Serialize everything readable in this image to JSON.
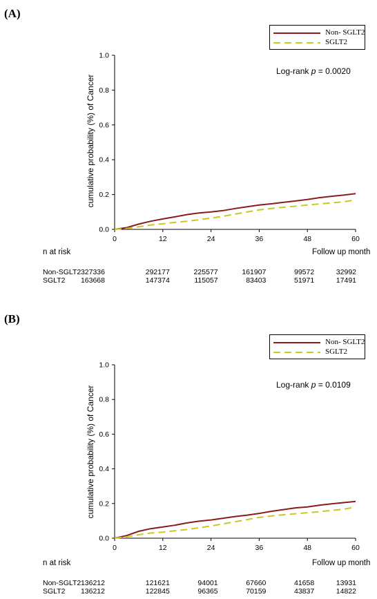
{
  "chart_data": [
    {
      "panel_label": "(A)",
      "type": "line",
      "ylabel": "cumulative probability (%) of Cancer",
      "xlabel": "Follow up month",
      "xticks": [
        0,
        12,
        24,
        36,
        48,
        60
      ],
      "yticks": [
        "0.0",
        "0.2",
        "0.4",
        "0.6",
        "0.8",
        "1.0"
      ],
      "xlim": [
        0,
        60
      ],
      "ylim": [
        0,
        1
      ],
      "annotation": {
        "prefix": "Log-rank ",
        "p": "p",
        "value": " = 0.0020"
      },
      "legend_position": "top-right",
      "series": [
        {
          "name": "Non- SGLT2",
          "color": "#8b1a1a",
          "dash": "solid",
          "x": [
            0,
            3,
            6,
            9,
            12,
            15,
            18,
            21,
            24,
            27,
            30,
            33,
            36,
            39,
            42,
            45,
            48,
            51,
            54,
            57,
            60
          ],
          "y": [
            0,
            0.01,
            0.03,
            0.047,
            0.06,
            0.072,
            0.085,
            0.094,
            0.1,
            0.108,
            0.12,
            0.13,
            0.14,
            0.147,
            0.155,
            0.163,
            0.172,
            0.182,
            0.19,
            0.197,
            0.205
          ]
        },
        {
          "name": "SGLT2",
          "color": "#c8c81e",
          "dash": "dashed",
          "x": [
            0,
            3,
            6,
            9,
            12,
            15,
            18,
            21,
            24,
            27,
            30,
            33,
            36,
            39,
            42,
            45,
            48,
            51,
            54,
            57,
            60
          ],
          "y": [
            0,
            0.005,
            0.015,
            0.025,
            0.032,
            0.04,
            0.047,
            0.055,
            0.065,
            0.075,
            0.088,
            0.1,
            0.112,
            0.12,
            0.127,
            0.133,
            0.14,
            0.146,
            0.152,
            0.158,
            0.17
          ]
        }
      ],
      "at_risk": {
        "title": "n at risk",
        "rows": [
          {
            "label": "Non-SGLT2",
            "values": [
              "327336",
              "292177",
              "225577",
              "161907",
              "99572",
              "32992"
            ]
          },
          {
            "label": "SGLT2",
            "values": [
              "163668",
              "147374",
              "115057",
              "83403",
              "51971",
              "17491"
            ]
          }
        ]
      }
    },
    {
      "panel_label": "(B)",
      "type": "line",
      "ylabel": "cumulative probability (%) of Cancer",
      "xlabel": "Follow up month",
      "xticks": [
        0,
        12,
        24,
        36,
        48,
        60
      ],
      "yticks": [
        "0.0",
        "0.2",
        "0.4",
        "0.6",
        "0.8",
        "1.0"
      ],
      "xlim": [
        0,
        60
      ],
      "ylim": [
        0,
        1
      ],
      "annotation": {
        "prefix": "Log-rank ",
        "p": "p",
        "value": " = 0.0109"
      },
      "legend_position": "top-right",
      "series": [
        {
          "name": "Non- SGLT2",
          "color": "#8b1a1a",
          "dash": "solid",
          "x": [
            0,
            3,
            6,
            9,
            12,
            15,
            18,
            21,
            24,
            27,
            30,
            33,
            36,
            39,
            42,
            45,
            48,
            51,
            54,
            57,
            60
          ],
          "y": [
            0,
            0.015,
            0.04,
            0.055,
            0.065,
            0.075,
            0.088,
            0.098,
            0.105,
            0.115,
            0.125,
            0.133,
            0.143,
            0.155,
            0.165,
            0.175,
            0.18,
            0.19,
            0.198,
            0.205,
            0.212
          ]
        },
        {
          "name": "SGLT2",
          "color": "#c8c81e",
          "dash": "dashed",
          "x": [
            0,
            3,
            6,
            9,
            12,
            15,
            18,
            21,
            24,
            27,
            30,
            33,
            36,
            39,
            42,
            45,
            48,
            51,
            54,
            57,
            60
          ],
          "y": [
            0,
            0.008,
            0.02,
            0.03,
            0.035,
            0.043,
            0.05,
            0.06,
            0.07,
            0.083,
            0.095,
            0.107,
            0.12,
            0.128,
            0.135,
            0.141,
            0.147,
            0.153,
            0.16,
            0.167,
            0.18
          ]
        }
      ],
      "at_risk": {
        "title": "n at risk",
        "rows": [
          {
            "label": "Non-SGLT2",
            "values": [
              "136212",
              "121621",
              "94001",
              "67660",
              "41658",
              "13931"
            ]
          },
          {
            "label": "SGLT2",
            "values": [
              "136212",
              "122845",
              "96365",
              "70159",
              "43837",
              "14822"
            ]
          }
        ]
      }
    }
  ]
}
